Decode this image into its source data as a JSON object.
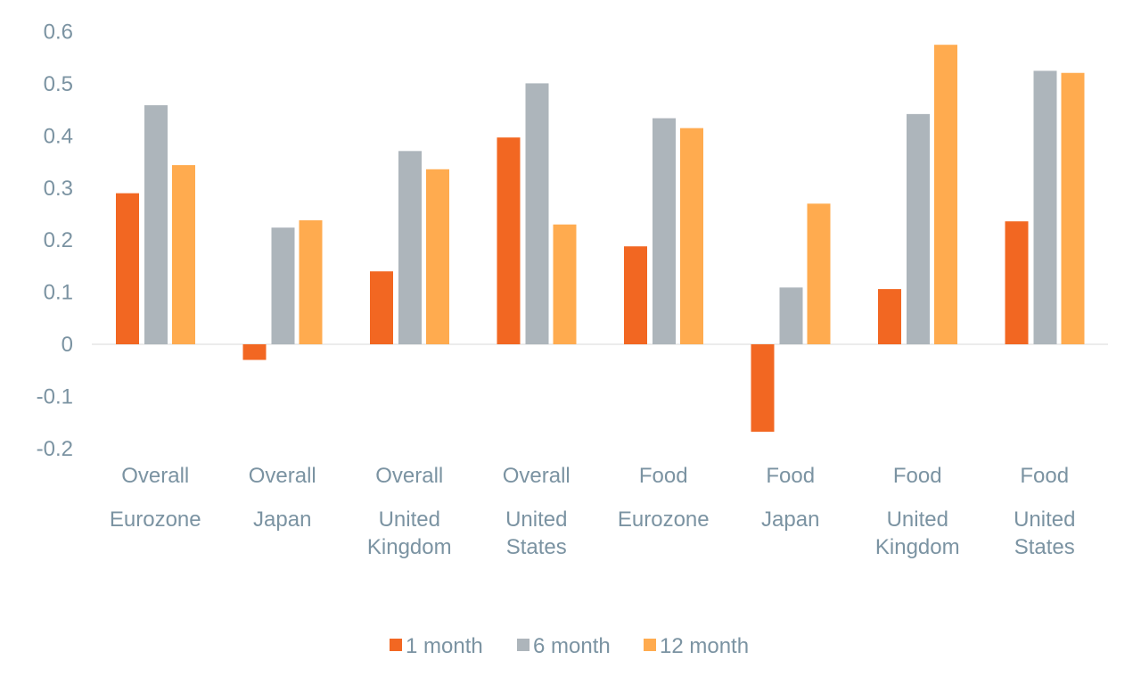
{
  "chart_data": {
    "type": "bar",
    "categories": [
      [
        "Overall",
        "Eurozone"
      ],
      [
        "Overall",
        "Japan"
      ],
      [
        "Overall",
        "United Kingdom"
      ],
      [
        "Overall",
        "United States"
      ],
      [
        "Food",
        "Eurozone"
      ],
      [
        "Food",
        "Japan"
      ],
      [
        "Food",
        "United Kingdom"
      ],
      [
        "Food",
        "United States"
      ]
    ],
    "series": [
      {
        "name": "1 month",
        "color": "#F26722",
        "values": [
          0.29,
          -0.03,
          0.14,
          0.397,
          0.188,
          -0.168,
          0.106,
          0.236
        ]
      },
      {
        "name": "6 month",
        "color": "#ADB5BB",
        "values": [
          0.459,
          0.224,
          0.371,
          0.501,
          0.434,
          0.109,
          0.442,
          0.525
        ]
      },
      {
        "name": "12 month",
        "color": "#FFAB4F",
        "values": [
          0.344,
          0.238,
          0.336,
          0.23,
          0.415,
          0.27,
          0.575,
          0.521
        ]
      }
    ],
    "yticks": [
      "0.6",
      "0.5",
      "0.4",
      "0.3",
      "0.2",
      "0.1",
      "0",
      "-0.1",
      "-0.2"
    ],
    "ylim": [
      -0.2,
      0.6
    ],
    "title": "",
    "xlabel": "",
    "ylabel": "",
    "grid": false,
    "legend_position": "bottom",
    "tick_color": "#7B93A2",
    "axis_line_color": "#D9D9D9"
  }
}
